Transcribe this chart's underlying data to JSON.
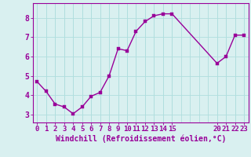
{
  "x": [
    0,
    1,
    2,
    3,
    4,
    5,
    6,
    7,
    8,
    9,
    10,
    11,
    12,
    13,
    14,
    15,
    20,
    21,
    22,
    23
  ],
  "y": [
    4.7,
    4.2,
    3.55,
    3.4,
    3.05,
    3.4,
    3.95,
    4.15,
    5.0,
    6.4,
    6.3,
    7.3,
    7.8,
    8.1,
    8.2,
    8.2,
    5.65,
    6.0,
    7.1,
    7.1
  ],
  "line_color": "#990099",
  "marker_color": "#990099",
  "bg_color": "#d9f0f0",
  "grid_color": "#b0dede",
  "xlabel": "Windchill (Refroidissement éolien,°C)",
  "xlabel_color": "#990099",
  "xticks": [
    0,
    1,
    2,
    3,
    4,
    5,
    6,
    7,
    8,
    9,
    10,
    11,
    12,
    13,
    14,
    15,
    20,
    21,
    22,
    23
  ],
  "xtick_labels": [
    "0",
    "1",
    "2",
    "3",
    "4",
    "5",
    "6",
    "7",
    "8",
    "9",
    "10",
    "11",
    "12",
    "13",
    "14",
    "15",
    "20",
    "21",
    "22",
    "23"
  ],
  "yticks": [
    3,
    4,
    5,
    6,
    7,
    8
  ],
  "ylim": [
    2.6,
    8.75
  ],
  "xlim": [
    -0.5,
    23.5
  ],
  "tick_color": "#990099",
  "spine_color": "#990099",
  "marker_size": 2.5,
  "line_width": 1.0,
  "font_size": 6.5,
  "ylabel_fontsize": 7
}
